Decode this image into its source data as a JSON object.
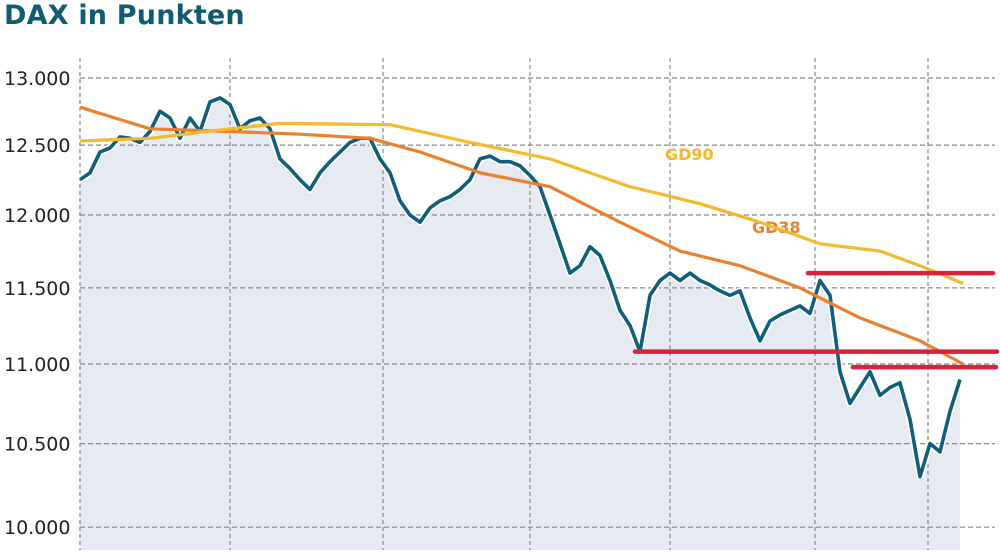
{
  "chart_data": {
    "type": "line",
    "title": "DAX in Punkten",
    "xlabel": "",
    "ylabel": "",
    "yscale": "log",
    "ylim": [
      10000,
      13000
    ],
    "yticks": [
      {
        "value": 13000,
        "label": "13.000"
      },
      {
        "value": 12500,
        "label": "12.500"
      },
      {
        "value": 12000,
        "label": "12.000"
      },
      {
        "value": 11500,
        "label": "11.500"
      },
      {
        "value": 11000,
        "label": "11.000"
      },
      {
        "value": 10500,
        "label": "10.500"
      },
      {
        "value": 10000,
        "label": "10.000"
      }
    ],
    "xlim": [
      0,
      91.7
    ],
    "xgrid": [
      0,
      15,
      30.3,
      45,
      59,
      73.5,
      84.8
    ],
    "grid": true,
    "series": [
      {
        "name": "DAX",
        "color": "#0f5f7a",
        "fill": "#e6eaf2",
        "values": [
          12250,
          12300,
          12450,
          12480,
          12560,
          12550,
          12520,
          12600,
          12750,
          12700,
          12550,
          12700,
          12600,
          12820,
          12850,
          12800,
          12620,
          12680,
          12700,
          12620,
          12400,
          12330,
          12250,
          12180,
          12300,
          12380,
          12450,
          12520,
          12550,
          12550,
          12400,
          12300,
          12100,
          12000,
          11950,
          12050,
          12100,
          12130,
          12180,
          12250,
          12400,
          12420,
          12380,
          12380,
          12350,
          12280,
          12200,
          12000,
          11800,
          11600,
          11650,
          11780,
          11720,
          11550,
          11350,
          11250,
          11080,
          11450,
          11550,
          11600,
          11550,
          11600,
          11550,
          11520,
          11480,
          11450,
          11480,
          11300,
          11150,
          11280,
          11320,
          11350,
          11380,
          11330,
          11550,
          11450,
          10950,
          10750,
          10850,
          10950,
          10800,
          10850,
          10880,
          10650,
          10300,
          10500,
          10450,
          10700,
          10900
        ]
      },
      {
        "name": "GD38",
        "label": "GD38",
        "color": "#e8822f",
        "points": [
          [
            0,
            12780
          ],
          [
            7,
            12620
          ],
          [
            15,
            12600
          ],
          [
            22,
            12580
          ],
          [
            29,
            12550
          ],
          [
            34,
            12450
          ],
          [
            40,
            12300
          ],
          [
            47,
            12200
          ],
          [
            54,
            11950
          ],
          [
            60,
            11750
          ],
          [
            66,
            11650
          ],
          [
            72,
            11500
          ],
          [
            78,
            11300
          ],
          [
            84,
            11150
          ],
          [
            88.3,
            11000
          ]
        ]
      },
      {
        "name": "GD90",
        "label": "GD90",
        "color": "#f5b82e",
        "points": [
          [
            0,
            12530
          ],
          [
            7,
            12550
          ],
          [
            15,
            12620
          ],
          [
            20,
            12660
          ],
          [
            31,
            12650
          ],
          [
            39,
            12520
          ],
          [
            47,
            12400
          ],
          [
            55,
            12200
          ],
          [
            62,
            12080
          ],
          [
            68,
            11950
          ],
          [
            74,
            11800
          ],
          [
            80,
            11750
          ],
          [
            84,
            11650
          ],
          [
            88.3,
            11530
          ]
        ]
      }
    ],
    "annotations": [
      {
        "type": "hline",
        "value": 11600,
        "from": 72.8,
        "to": 91.3,
        "color": "#d9213a"
      },
      {
        "type": "hline",
        "value": 11080,
        "from": 55.5,
        "to": 91.7,
        "color": "#d9213a"
      },
      {
        "type": "hline",
        "value": 10980,
        "from": 77.3,
        "to": 91.6,
        "color": "#d9213a"
      }
    ]
  }
}
